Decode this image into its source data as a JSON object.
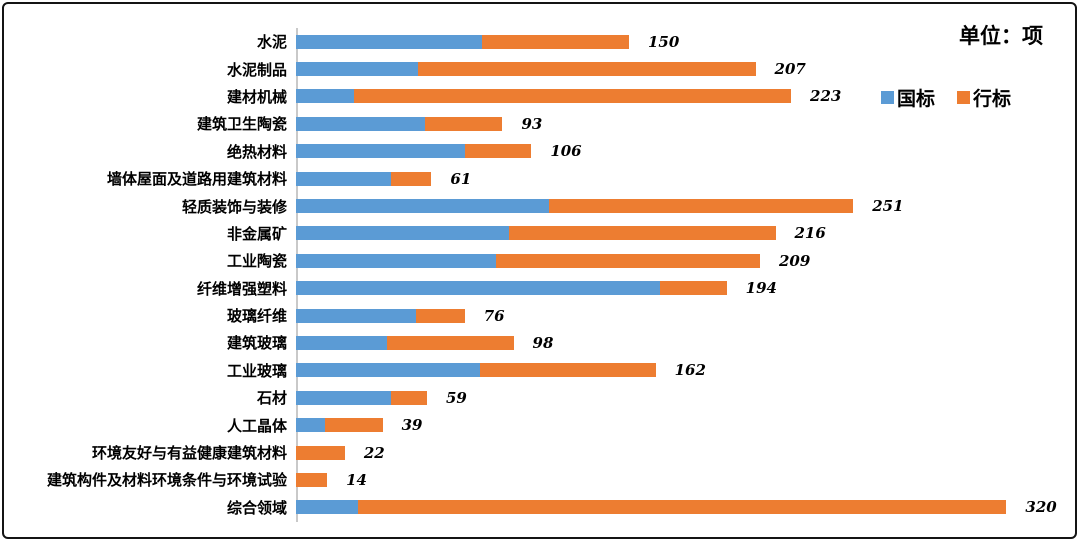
{
  "header": {
    "unit_label": "单位：项"
  },
  "legend": {
    "position": "top-right",
    "items": [
      {
        "label": "国标",
        "color": "#5B9BD5"
      },
      {
        "label": "行标",
        "color": "#ED7D31"
      }
    ]
  },
  "colors": {
    "national_blue": "#5B9BD5",
    "industry_orange": "#ED7D31",
    "axis_line": "#C9C9C9",
    "text": "#000000",
    "frame_border": "#141414"
  },
  "chart_data": {
    "type": "bar",
    "orientation": "horizontal",
    "stacked": true,
    "title": "单位：项",
    "xlabel": "",
    "ylabel": "",
    "grid": false,
    "xlim": [
      0,
      330
    ],
    "categories": [
      "水泥",
      "水泥制品",
      "建材机械",
      "建筑卫生陶瓷",
      "绝热材料",
      "墙体屋面及道路用建筑材料",
      "轻质装饰与装修",
      "非金属矿",
      "工业陶瓷",
      "纤维增强塑料",
      "玻璃纤维",
      "建筑玻璃",
      "工业玻璃",
      "石材",
      "人工晶体",
      "环境友好与有益健康建筑材料",
      "建筑构件及材料环境条件与环境试验",
      "综合领域"
    ],
    "series": [
      {
        "name": "国标",
        "color": "#5B9BD5",
        "values": [
          84,
          55,
          26,
          58,
          76,
          43,
          114,
          96,
          90,
          164,
          54,
          41,
          83,
          43,
          13,
          0,
          0,
          28
        ]
      },
      {
        "name": "行标",
        "color": "#ED7D31",
        "values": [
          66,
          152,
          197,
          35,
          30,
          18,
          137,
          120,
          119,
          30,
          22,
          57,
          79,
          16,
          26,
          22,
          14,
          292
        ]
      }
    ],
    "totals": [
      150,
      207,
      223,
      93,
      106,
      61,
      251,
      216,
      209,
      194,
      76,
      98,
      162,
      59,
      39,
      22,
      14,
      320
    ],
    "value_labels": {
      "shown": "totals",
      "style": "bold italic",
      "position": "right-of-bar"
    }
  }
}
